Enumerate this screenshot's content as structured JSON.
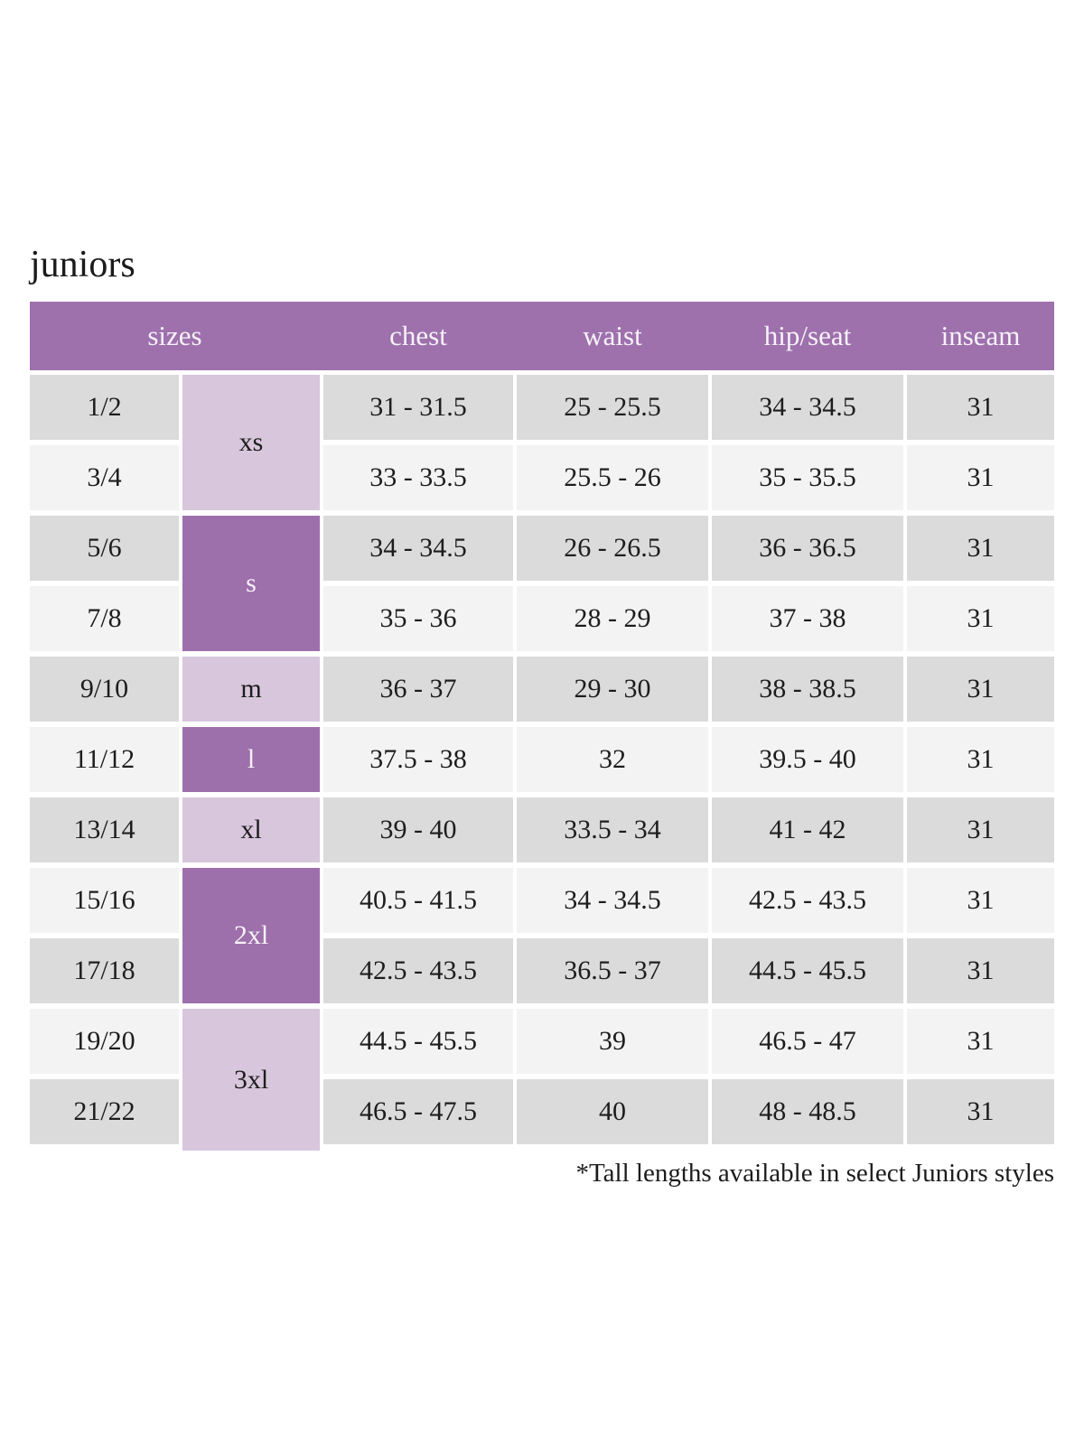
{
  "page": {
    "title": "juniors",
    "footnote": "*Tall lengths available in select Juniors styles"
  },
  "colors": {
    "header_bg": "#9e71ad",
    "group_dark_bg": "#9d6fab",
    "group_light_bg": "#d8c6dd",
    "row_gray": "#dbdbdb",
    "row_light": "#f3f3f3",
    "header_text": "#f7f2f8",
    "body_text": "#1d1d1d"
  },
  "table": {
    "headers": [
      "sizes",
      "chest",
      "waist",
      "hip/seat",
      "inseam"
    ],
    "groups": [
      {
        "label": "xs",
        "shade": "light",
        "rows": 2
      },
      {
        "label": "s",
        "shade": "dark",
        "rows": 2
      },
      {
        "label": "m",
        "shade": "light",
        "rows": 1
      },
      {
        "label": "l",
        "shade": "dark",
        "rows": 1
      },
      {
        "label": "xl",
        "shade": "light",
        "rows": 1
      },
      {
        "label": "2xl",
        "shade": "dark",
        "rows": 2
      },
      {
        "label": "3xl",
        "shade": "light",
        "rows": 2
      }
    ],
    "rows": [
      {
        "size": "1/2",
        "chest": "31 - 31.5",
        "waist": "25 - 25.5",
        "hip_seat": "34 - 34.5",
        "inseam": "31"
      },
      {
        "size": "3/4",
        "chest": "33 - 33.5",
        "waist": "25.5 - 26",
        "hip_seat": "35 - 35.5",
        "inseam": "31"
      },
      {
        "size": "5/6",
        "chest": "34 - 34.5",
        "waist": "26 - 26.5",
        "hip_seat": "36 - 36.5",
        "inseam": "31"
      },
      {
        "size": "7/8",
        "chest": "35 - 36",
        "waist": "28 - 29",
        "hip_seat": "37 - 38",
        "inseam": "31"
      },
      {
        "size": "9/10",
        "chest": "36 - 37",
        "waist": "29 - 30",
        "hip_seat": "38 - 38.5",
        "inseam": "31"
      },
      {
        "size": "11/12",
        "chest": "37.5 - 38",
        "waist": "32",
        "hip_seat": "39.5 - 40",
        "inseam": "31"
      },
      {
        "size": "13/14",
        "chest": "39 - 40",
        "waist": "33.5 - 34",
        "hip_seat": "41 - 42",
        "inseam": "31"
      },
      {
        "size": "15/16",
        "chest": "40.5 - 41.5",
        "waist": "34 - 34.5",
        "hip_seat": "42.5 - 43.5",
        "inseam": "31"
      },
      {
        "size": "17/18",
        "chest": "42.5 - 43.5",
        "waist": "36.5 - 37",
        "hip_seat": "44.5 - 45.5",
        "inseam": "31"
      },
      {
        "size": "19/20",
        "chest": "44.5 - 45.5",
        "waist": "39",
        "hip_seat": "46.5 - 47",
        "inseam": "31"
      },
      {
        "size": "21/22",
        "chest": "46.5 - 47.5",
        "waist": "40",
        "hip_seat": "48 - 48.5",
        "inseam": "31"
      }
    ]
  }
}
